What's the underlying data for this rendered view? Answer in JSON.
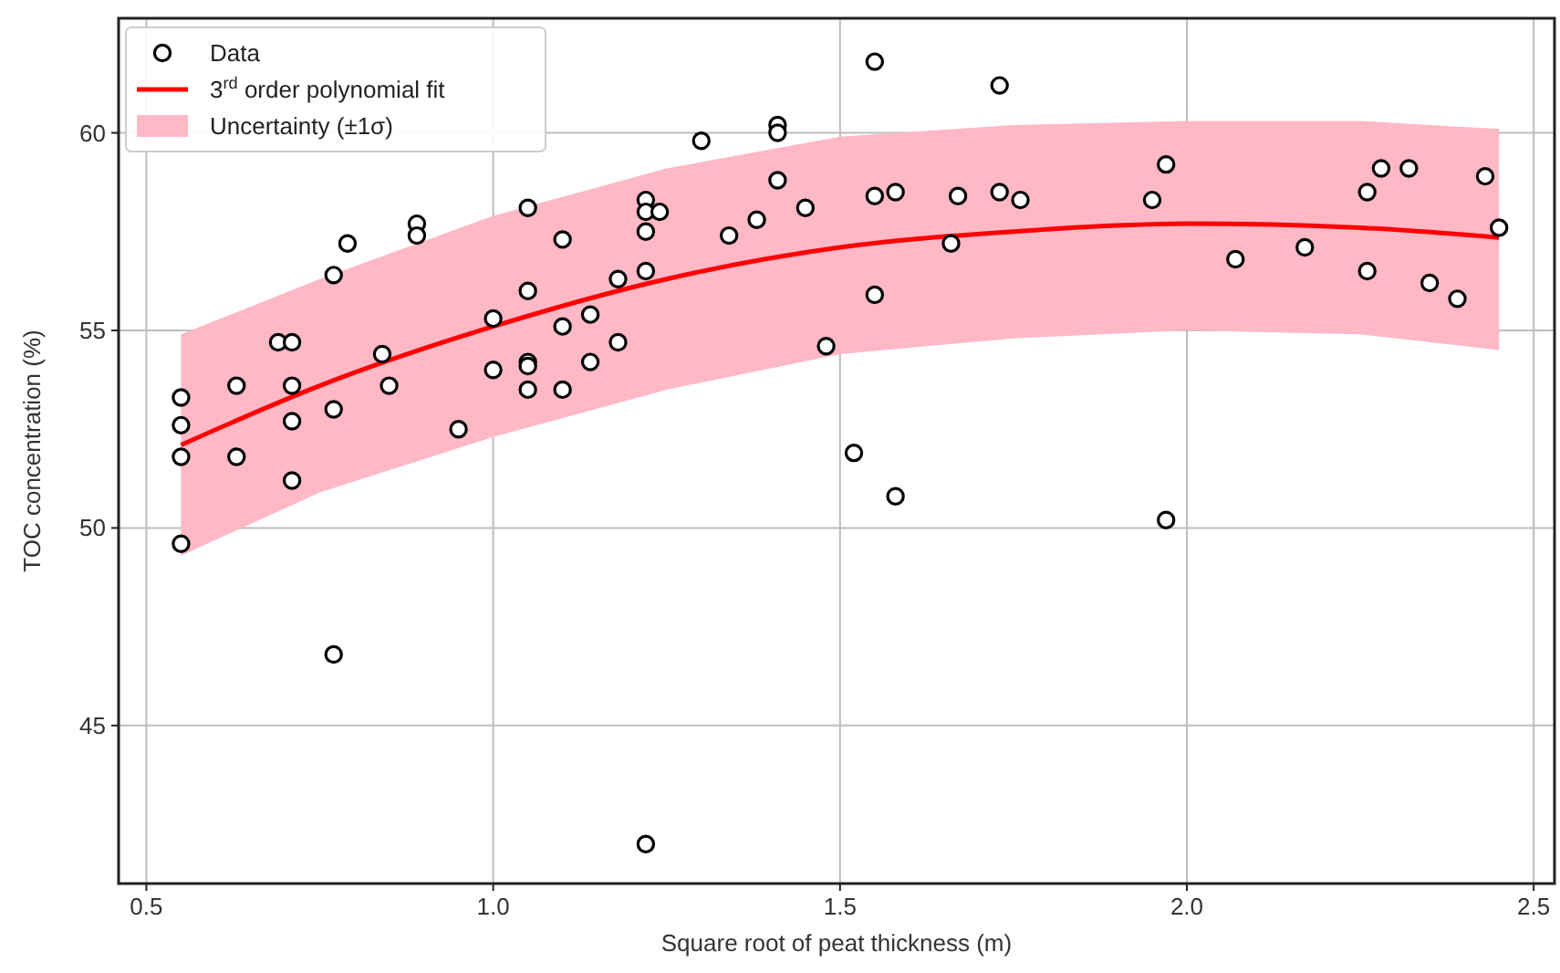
{
  "chart_data": {
    "type": "scatter",
    "xlabel": "Square root of peat thickness (m)",
    "ylabel": "TOC concentration (%)",
    "xlim": [
      0.46,
      2.53
    ],
    "ylim": [
      41,
      62.9
    ],
    "xticks": [
      {
        "value": 0.5,
        "label": "0.5"
      },
      {
        "value": 1,
        "label": "1.0"
      },
      {
        "value": 1.5,
        "label": "1.5"
      },
      {
        "value": 2,
        "label": "2.0"
      },
      {
        "value": 2.5,
        "label": "2.5"
      }
    ],
    "yticks": [
      45,
      50,
      55,
      60
    ],
    "grid": true,
    "legend": "top left",
    "annotations": [
      "Uncertainty (±1σ)"
    ],
    "series": [
      {
        "name": "3$^{rd}$ order polynomial fit",
        "type": "line",
        "color": "#ff0000",
        "x": [
          0.55,
          0.75,
          1.0,
          1.25,
          1.5,
          1.75,
          2.0,
          2.25,
          2.45
        ],
        "values": [
          52.1,
          53.6,
          55.1,
          56.3,
          57.1,
          57.5,
          57.7,
          57.6,
          57.35
        ],
        "lower": [
          49.3,
          50.9,
          52.3,
          53.5,
          54.4,
          54.8,
          55.0,
          54.9,
          54.5
        ],
        "upper": [
          54.9,
          56.3,
          57.9,
          59.1,
          59.9,
          60.2,
          60.3,
          60.3,
          60.1
        ]
      },
      {
        "name": "Data",
        "color": "#000000",
        "marker": "circle",
        "x": [
          0.55,
          0.55,
          0.55,
          0.55,
          0.63,
          0.63,
          0.69,
          0.71,
          0.71,
          0.71,
          0.71,
          0.77,
          0.77,
          0.77,
          0.79,
          0.84,
          0.85,
          0.89,
          0.89,
          0.95,
          1.0,
          1.0,
          1.05,
          1.05,
          1.05,
          1.05,
          1.05,
          1.1,
          1.1,
          1.1,
          1.14,
          1.14,
          1.18,
          1.18,
          1.22,
          1.22,
          1.22,
          1.22,
          1.22,
          1.24,
          1.3,
          1.34,
          1.38,
          1.41,
          1.41,
          1.41,
          1.45,
          1.48,
          1.52,
          1.55,
          1.55,
          1.55,
          1.58,
          1.58,
          1.66,
          1.67,
          1.73,
          1.73,
          1.76,
          1.95,
          1.97,
          1.97,
          2.07,
          2.17,
          2.26,
          2.26,
          2.28,
          2.32,
          2.35,
          2.39,
          2.43,
          2.45
        ],
        "values": [
          53.3,
          52.6,
          51.8,
          49.6,
          53.6,
          51.8,
          54.7,
          54.7,
          53.6,
          52.7,
          51.2,
          56.4,
          53.0,
          46.8,
          57.2,
          54.4,
          53.6,
          57.7,
          57.4,
          52.5,
          55.3,
          54.0,
          58.1,
          56.0,
          54.2,
          54.1,
          53.5,
          57.3,
          55.1,
          53.5,
          55.4,
          54.2,
          56.3,
          54.7,
          58.3,
          58.0,
          57.5,
          56.5,
          42.0,
          58.0,
          59.8,
          57.4,
          57.8,
          60.2,
          60.0,
          58.8,
          58.1,
          54.6,
          51.9,
          61.8,
          58.4,
          55.9,
          58.5,
          50.8,
          57.2,
          58.4,
          61.2,
          58.5,
          58.3,
          58.3,
          59.2,
          50.2,
          56.8,
          57.1,
          58.5,
          56.5,
          59.1,
          59.1,
          56.2,
          55.8,
          58.9,
          57.6
        ]
      }
    ]
  }
}
